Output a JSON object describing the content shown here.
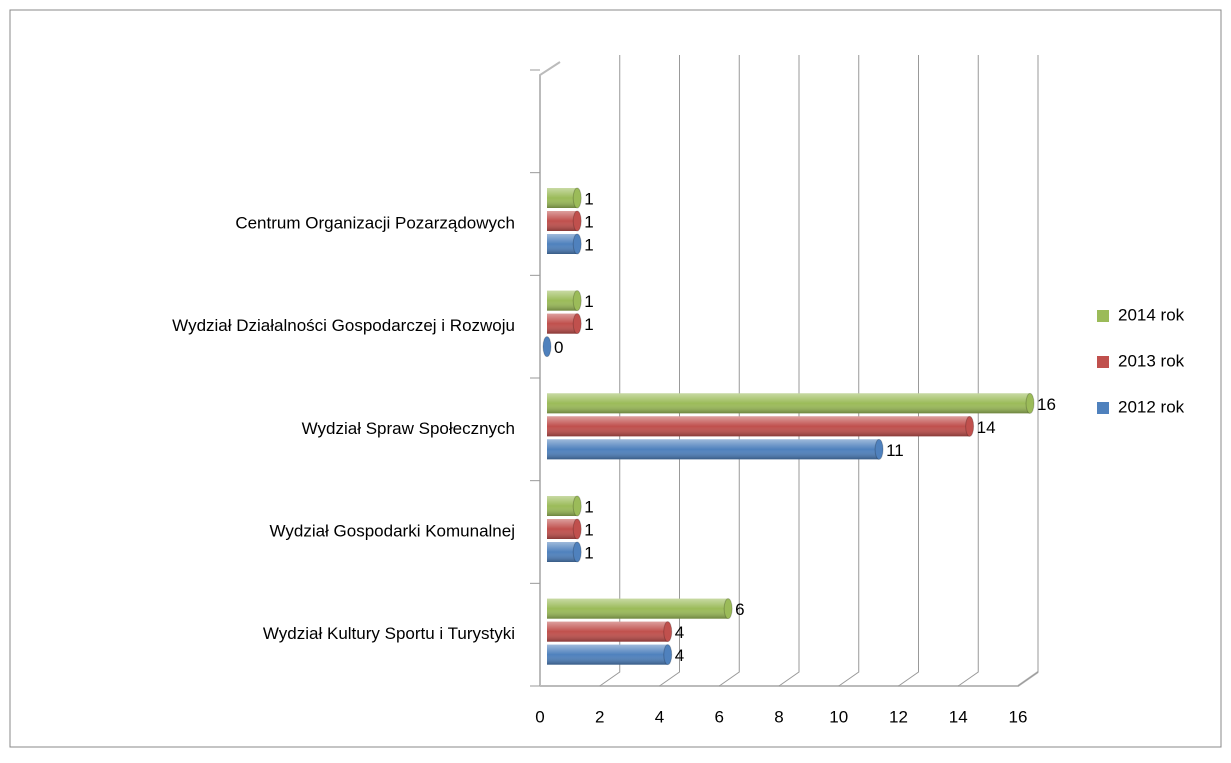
{
  "chart_data": {
    "type": "bar",
    "orientation": "horizontal",
    "categories": [
      "Wydział Kultury Sportu i Turystyki",
      "Wydział Gospodarki Komunalnej",
      "Wydział Spraw Społecznych",
      "Wydział Działalności Gospodarczej i Rozwoju",
      "Centrum Organizacji Pozarządowych",
      null
    ],
    "series": [
      {
        "name": "2012 rok",
        "color": "#4f81bd",
        "values": [
          4,
          1,
          11,
          0,
          1,
          null
        ]
      },
      {
        "name": "2013 rok",
        "color": "#c0504d",
        "values": [
          4,
          1,
          14,
          1,
          1,
          null
        ]
      },
      {
        "name": "2014 rok",
        "color": "#9bbb59",
        "values": [
          6,
          1,
          16,
          1,
          1,
          null
        ]
      }
    ],
    "xlim": [
      0,
      16
    ],
    "xticks": [
      0,
      2,
      4,
      6,
      8,
      10,
      12,
      14,
      16
    ],
    "grid": true,
    "legend": "right"
  }
}
